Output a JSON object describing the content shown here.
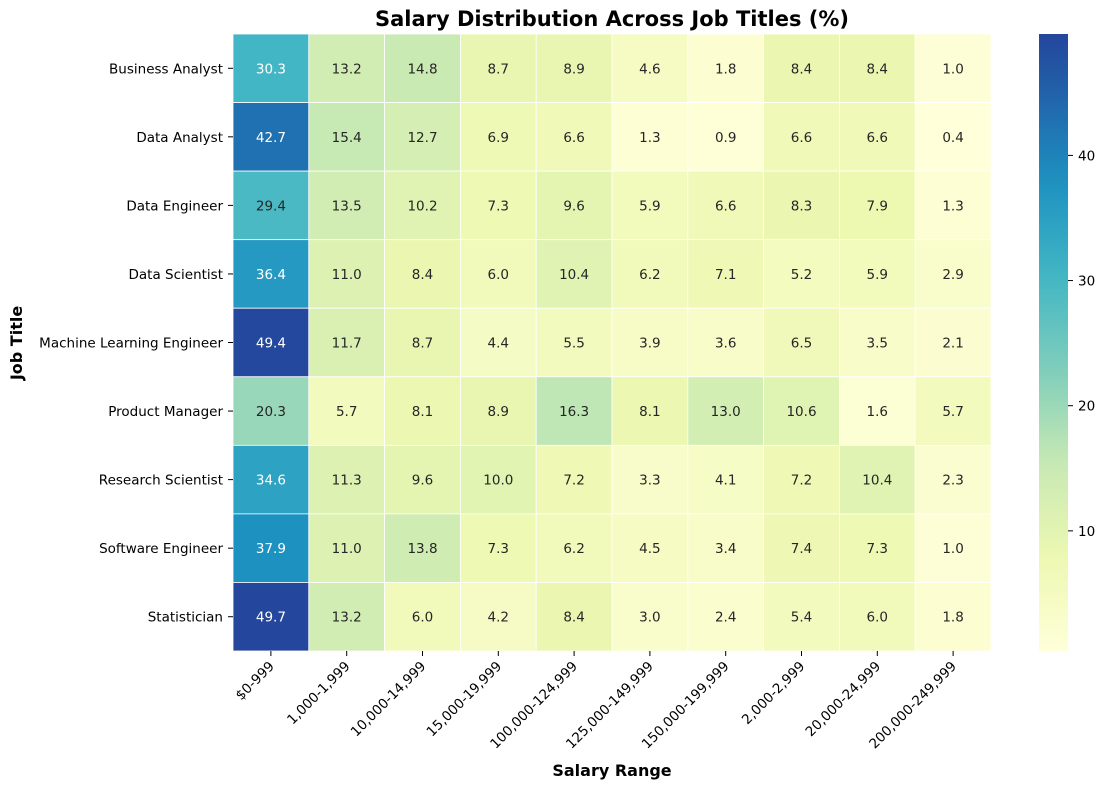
{
  "chart_data": {
    "type": "heatmap",
    "title": "Salary Distribution Across Job Titles (%)",
    "xlabel": "Salary Range",
    "ylabel": "Job Title",
    "x_categories": [
      "$0-999",
      "1,000-1,999",
      "10,000-14,999",
      "15,000-19,999",
      "100,000-124,999",
      "125,000-149,999",
      "150,000-199,999",
      "2,000-2,999",
      "20,000-24,999",
      "200,000-249,999"
    ],
    "y_categories": [
      "Business Analyst",
      "Data Analyst",
      "Data Engineer",
      "Data Scientist",
      "Machine Learning Engineer",
      "Product Manager",
      "Research Scientist",
      "Software Engineer",
      "Statistician"
    ],
    "values": [
      [
        30.3,
        13.2,
        14.8,
        8.7,
        8.9,
        4.6,
        1.8,
        8.4,
        8.4,
        1.0
      ],
      [
        42.7,
        15.4,
        12.7,
        6.9,
        6.6,
        1.3,
        0.9,
        6.6,
        6.6,
        0.4
      ],
      [
        29.4,
        13.5,
        10.2,
        7.3,
        9.6,
        5.9,
        6.6,
        8.3,
        7.9,
        1.3
      ],
      [
        36.4,
        11.0,
        8.4,
        6.0,
        10.4,
        6.2,
        7.1,
        5.2,
        5.9,
        2.9
      ],
      [
        49.4,
        11.7,
        8.7,
        4.4,
        5.5,
        3.9,
        3.6,
        6.5,
        3.5,
        2.1
      ],
      [
        20.3,
        5.7,
        8.1,
        8.9,
        16.3,
        8.1,
        13.0,
        10.6,
        1.6,
        5.7
      ],
      [
        34.6,
        11.3,
        9.6,
        10.0,
        7.2,
        3.3,
        4.1,
        7.2,
        10.4,
        2.3
      ],
      [
        37.9,
        11.0,
        13.8,
        7.3,
        6.2,
        4.5,
        3.4,
        7.4,
        7.3,
        1.0
      ],
      [
        49.7,
        13.2,
        6.0,
        4.2,
        8.4,
        3.0,
        2.4,
        5.4,
        6.0,
        1.8
      ]
    ],
    "value_format": "0.1",
    "colormap": "YlGnBu",
    "color_range": [
      0.4,
      49.7
    ],
    "colorbar_ticks": [
      10,
      20,
      30,
      40
    ],
    "grid": true,
    "grid_color": "#ffffff",
    "legend": "colorbar-right"
  }
}
